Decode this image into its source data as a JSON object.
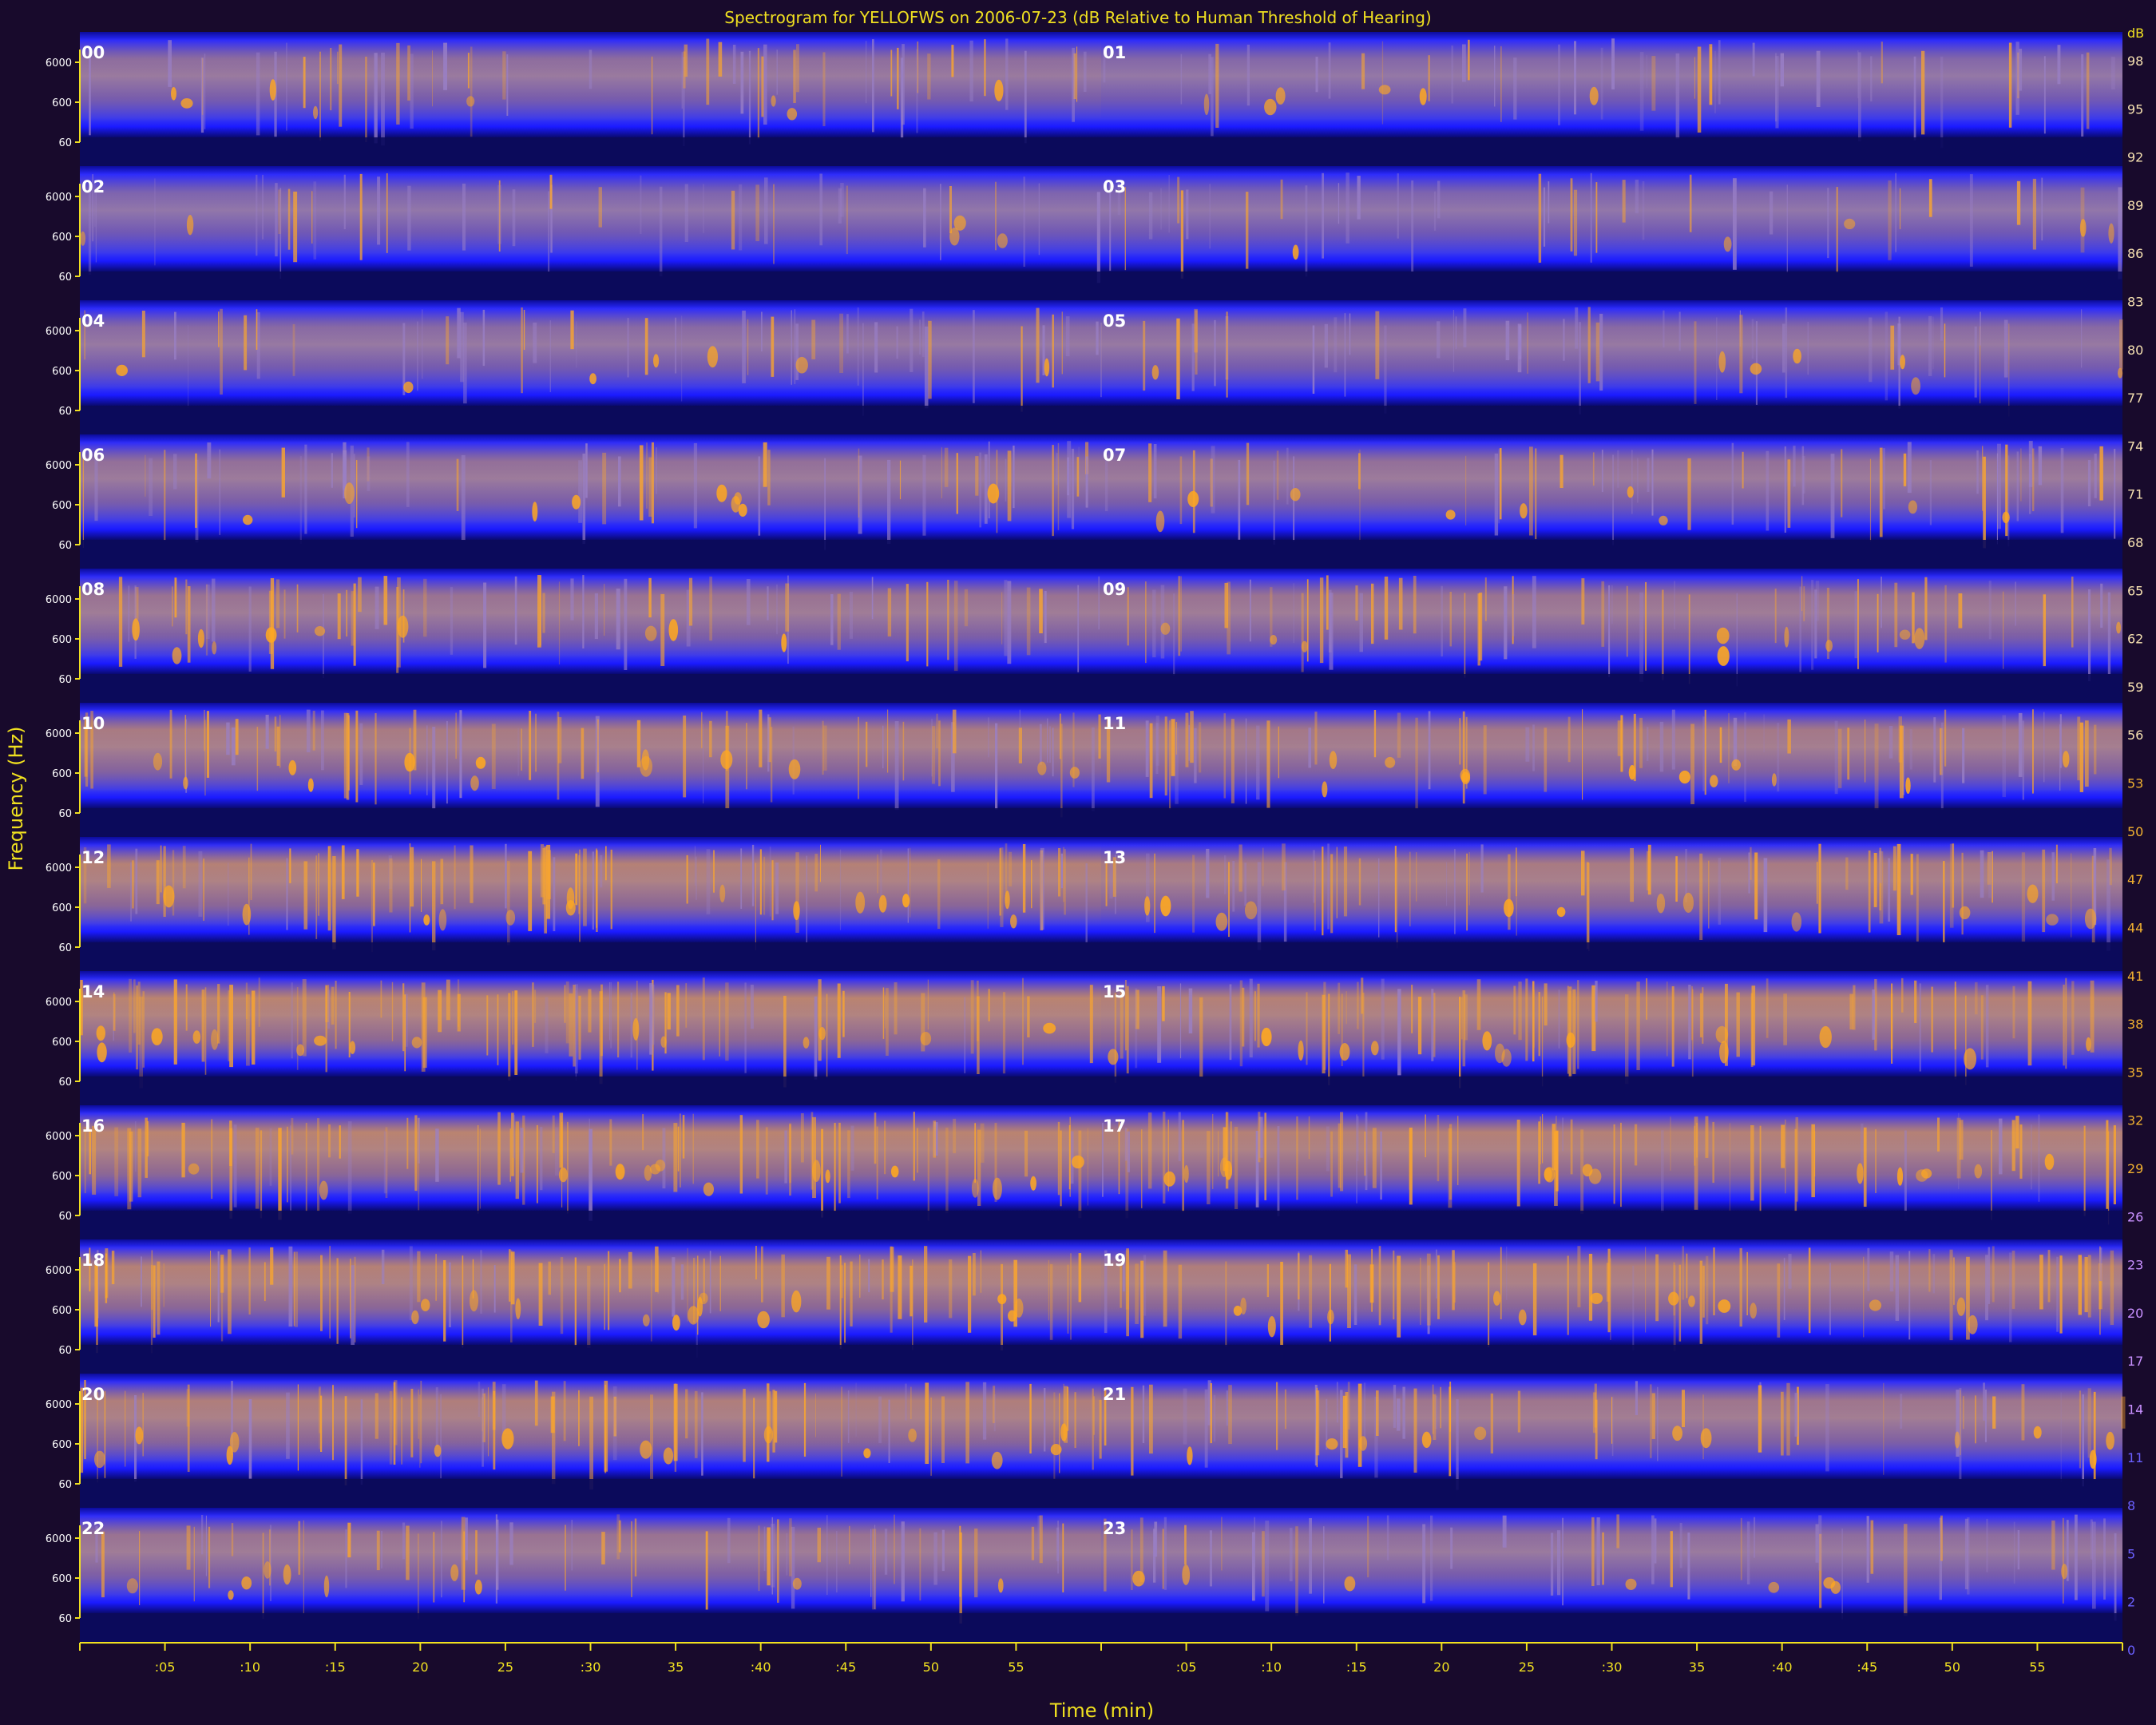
{
  "chart_data": {
    "type": "heatmap",
    "title": "Spectrogram for YELLOFWS on 2006-07-23 (dB Relative to Human Threshold of Hearing)",
    "ylabel": "Frequency (Hz)",
    "xlabel": "Time (min)",
    "y_tick_labels": [
      "6000",
      "600",
      "60"
    ],
    "x_tick_labels": [
      ":05",
      ":10",
      ":15",
      "20",
      "25",
      ":30",
      "35",
      ":40",
      ":45",
      "50",
      "55",
      ":05",
      ":10",
      ":15",
      "20",
      "25",
      ":30",
      "35",
      ":40",
      ":45",
      "50",
      "55"
    ],
    "hour_labels": [
      "00",
      "01",
      "02",
      "03",
      "04",
      "05",
      "06",
      "07",
      "08",
      "09",
      "10",
      "11",
      "12",
      "13",
      "14",
      "15",
      "16",
      "17",
      "18",
      "19",
      "20",
      "21",
      "22",
      "23"
    ],
    "colorbar": {
      "unit": "dB",
      "labels": [
        "98",
        "95",
        "92",
        "89",
        "86",
        "83",
        "80",
        "77",
        "74",
        "71",
        "68",
        "65",
        "62",
        "59",
        "56",
        "53",
        "50",
        "47",
        "44",
        "41",
        "38",
        "35",
        "32",
        "29",
        "26",
        "23",
        "20",
        "17",
        "14",
        "11",
        "8",
        "5",
        "2",
        "0"
      ]
    },
    "hour_intensity": [
      0.45,
      0.35,
      0.3,
      0.3,
      0.4,
      0.4,
      0.5,
      0.5,
      0.55,
      0.55,
      0.7,
      0.65,
      0.8,
      0.7,
      0.85,
      0.8,
      0.85,
      0.8,
      0.8,
      0.75,
      0.75,
      0.6,
      0.55,
      0.45
    ],
    "colors": {
      "background": "#180a2c",
      "band_base": "#0a0a8a",
      "low": "#1818ff",
      "mid": "#7060c0",
      "high": "#ffa020",
      "axis": "#f0e020"
    }
  }
}
